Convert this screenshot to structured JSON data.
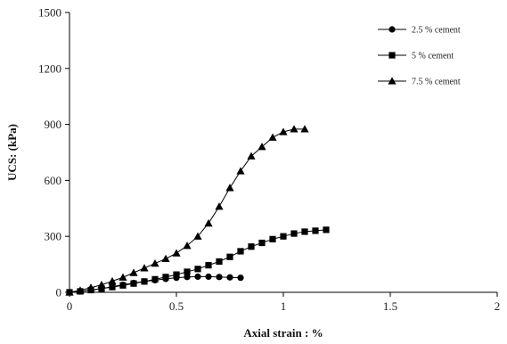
{
  "chart_data": {
    "type": "line",
    "xlabel": "Axial strain : %",
    "ylabel": "UCS: (kPa)",
    "xlim": [
      0,
      2
    ],
    "ylim": [
      0,
      1500
    ],
    "xticks": [
      "0",
      "0.5",
      "1",
      "1.5",
      "2"
    ],
    "yticks": [
      "0",
      "300",
      "600",
      "900",
      "1200",
      "1500"
    ],
    "legend_position": "top-right",
    "grid": false,
    "series": [
      {
        "name": "2.5 % cement",
        "marker": "circle",
        "x": [
          0,
          0.05,
          0.1,
          0.15,
          0.2,
          0.25,
          0.3,
          0.35,
          0.4,
          0.45,
          0.5,
          0.55,
          0.6,
          0.65,
          0.7,
          0.75,
          0.8
        ],
        "y": [
          0,
          5,
          12,
          20,
          30,
          40,
          50,
          58,
          65,
          72,
          78,
          82,
          84,
          84,
          82,
          80,
          78
        ]
      },
      {
        "name": "5 % cement",
        "marker": "square",
        "x": [
          0,
          0.05,
          0.1,
          0.15,
          0.2,
          0.25,
          0.3,
          0.35,
          0.4,
          0.45,
          0.5,
          0.55,
          0.6,
          0.65,
          0.7,
          0.75,
          0.8,
          0.85,
          0.9,
          0.95,
          1.0,
          1.05,
          1.1,
          1.15,
          1.2
        ],
        "y": [
          0,
          5,
          12,
          20,
          28,
          37,
          47,
          58,
          70,
          82,
          95,
          110,
          125,
          145,
          165,
          190,
          220,
          245,
          265,
          285,
          300,
          315,
          325,
          330,
          335
        ]
      },
      {
        "name": "7.5 % cement",
        "marker": "triangle",
        "x": [
          0,
          0.05,
          0.1,
          0.15,
          0.2,
          0.25,
          0.3,
          0.35,
          0.4,
          0.45,
          0.5,
          0.55,
          0.6,
          0.65,
          0.7,
          0.75,
          0.8,
          0.85,
          0.9,
          0.95,
          1.0,
          1.05,
          1.1
        ],
        "y": [
          0,
          10,
          25,
          40,
          60,
          80,
          105,
          130,
          155,
          180,
          210,
          250,
          300,
          370,
          460,
          560,
          650,
          730,
          780,
          830,
          860,
          875,
          875
        ]
      }
    ]
  }
}
